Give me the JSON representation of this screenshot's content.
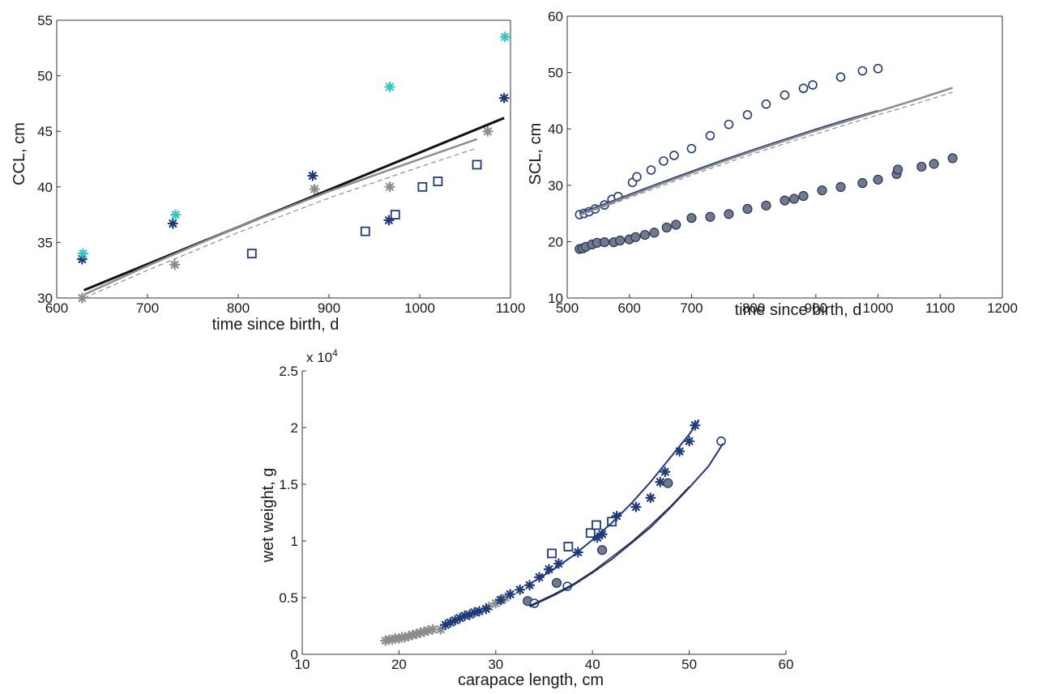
{
  "chart_data": [
    {
      "type": "scatter",
      "id": "ccl",
      "title": "",
      "xlabel": "time since birth, d",
      "ylabel": "CCL, cm",
      "xlim": [
        600,
        1100
      ],
      "ylim": [
        30,
        55
      ],
      "xticks": [
        "600",
        "700",
        "800",
        "900",
        "1000",
        "1100"
      ],
      "yticks": [
        "30",
        "35",
        "40",
        "45",
        "50",
        "55"
      ],
      "grid": false,
      "colors": {
        "navy": "#1f3a7a",
        "gray": "#8c8c8c",
        "cyan": "#33c4c4",
        "black": "#111111"
      },
      "series": [
        {
          "kind": "marker",
          "marker": "asterisk",
          "color": "navy",
          "x": [
            628,
            728,
            882,
            966,
            1093
          ],
          "y": [
            33.5,
            36.7,
            41.0,
            37.0,
            48.0
          ]
        },
        {
          "kind": "marker",
          "marker": "asterisk",
          "color": "gray",
          "x": [
            628,
            730,
            884,
            967,
            1075
          ],
          "y": [
            30.0,
            33.0,
            39.8,
            40.0,
            45.0
          ]
        },
        {
          "kind": "marker",
          "marker": "asterisk",
          "color": "cyan",
          "x": [
            629,
            731,
            967,
            1094
          ],
          "y": [
            34.0,
            37.5,
            49.0,
            53.5
          ]
        },
        {
          "kind": "marker",
          "marker": "square",
          "color": "navy",
          "x": [
            815,
            940,
            973,
            1003,
            1020,
            1063
          ],
          "y": [
            34.0,
            36.0,
            37.5,
            40.0,
            40.5,
            42.0
          ]
        },
        {
          "kind": "line",
          "color": "black",
          "width": 3,
          "dash": "",
          "x": [
            630,
            1093
          ],
          "y": [
            30.7,
            46.2
          ]
        },
        {
          "kind": "line",
          "color": "gray",
          "width": 2.5,
          "dash": "",
          "x": [
            630,
            700,
            800,
            900,
            1000,
            1063
          ],
          "y": [
            30.3,
            32.9,
            36.4,
            39.6,
            42.5,
            44.3
          ]
        },
        {
          "kind": "line",
          "color": "gray",
          "width": 1.2,
          "dash": "6,4",
          "x": [
            630,
            700,
            800,
            900,
            1000,
            1063
          ],
          "y": [
            30.0,
            32.5,
            35.9,
            39.0,
            41.8,
            43.5
          ]
        }
      ]
    },
    {
      "type": "scatter",
      "id": "scl",
      "title": "",
      "xlabel": "time since birth, d",
      "ylabel": "SCL, cm",
      "xlim": [
        500,
        1200
      ],
      "ylim": [
        10,
        60
      ],
      "xticks": [
        "500",
        "600",
        "700",
        "800",
        "900",
        "1000",
        "1100",
        "1200"
      ],
      "yticks": [
        "10",
        "20",
        "30",
        "40",
        "50",
        "60"
      ],
      "grid": false,
      "colors": {
        "navy": "#1f3a7a",
        "gray": "#8c8c8c",
        "fill": "#6f7a91"
      },
      "series": [
        {
          "kind": "marker",
          "marker": "open-circle",
          "color": "navy",
          "x": [
            520,
            527,
            535,
            545,
            560,
            572,
            582,
            605,
            612,
            635,
            655,
            672,
            700,
            730,
            760,
            790,
            820,
            850,
            880,
            895,
            940,
            975,
            1000
          ],
          "y": [
            24.8,
            25.0,
            25.3,
            25.8,
            26.5,
            27.5,
            28.0,
            30.5,
            31.5,
            32.7,
            34.3,
            35.3,
            36.5,
            38.8,
            40.8,
            42.5,
            44.4,
            46.0,
            47.2,
            47.8,
            49.2,
            50.3,
            50.7
          ]
        },
        {
          "kind": "marker",
          "marker": "filled-circle",
          "color": "navy",
          "x": [
            520,
            525,
            530,
            540,
            548,
            560,
            575,
            585,
            600,
            610,
            625,
            640,
            660,
            675,
            700,
            730,
            760,
            790,
            820,
            850,
            865,
            880,
            910,
            940,
            975,
            1000,
            1030,
            1032,
            1070,
            1090,
            1120
          ],
          "y": [
            18.7,
            18.8,
            19.1,
            19.5,
            19.8,
            19.9,
            19.9,
            20.2,
            20.4,
            20.8,
            21.2,
            21.6,
            22.5,
            23.0,
            24.2,
            24.4,
            24.9,
            25.8,
            26.4,
            27.3,
            27.6,
            28.1,
            29.1,
            29.7,
            30.4,
            31.0,
            32.0,
            32.8,
            33.3,
            33.8,
            34.8
          ]
        },
        {
          "kind": "line",
          "color": "navy",
          "width": 2.5,
          "dash": "",
          "x": [
            520,
            550,
            600,
            650,
            700,
            750,
            800,
            850,
            900,
            950,
            1000
          ],
          "y": [
            25.0,
            26.2,
            28.3,
            30.4,
            32.4,
            34.4,
            36.3,
            38.1,
            39.9,
            41.6,
            43.2
          ]
        },
        {
          "kind": "line",
          "color": "gray",
          "width": 2.5,
          "dash": "",
          "x": [
            520,
            550,
            600,
            650,
            700,
            750,
            800,
            850,
            900,
            950,
            1000,
            1050,
            1120
          ],
          "y": [
            24.8,
            26.0,
            28.1,
            30.2,
            32.2,
            34.2,
            36.1,
            37.9,
            39.7,
            41.4,
            43.1,
            44.8,
            47.3
          ]
        },
        {
          "kind": "line",
          "color": "gray",
          "width": 1.2,
          "dash": "6,4",
          "x": [
            520,
            550,
            600,
            650,
            700,
            750,
            800,
            850,
            900,
            950,
            1000,
            1050,
            1120
          ],
          "y": [
            24.6,
            25.8,
            27.8,
            29.8,
            31.8,
            33.7,
            35.6,
            37.4,
            39.1,
            40.8,
            42.5,
            44.1,
            46.5
          ]
        }
      ]
    },
    {
      "type": "scatter",
      "id": "ww",
      "title": "",
      "xlabel": "carapace length, cm",
      "ylabel": "wet weight, g",
      "exponent_label": "x 10",
      "exponent_power": "4",
      "xlim": [
        10,
        60
      ],
      "ylim": [
        0,
        2.5
      ],
      "xticks": [
        "10",
        "20",
        "30",
        "40",
        "50",
        "60"
      ],
      "yticks": [
        "0",
        "0.5",
        "1",
        "1.5",
        "2",
        "2.5"
      ],
      "grid": false,
      "colors": {
        "navy": "#1f3a7a",
        "gray": "#8c8c8c",
        "fill": "#6f7a91",
        "black": "#222222"
      },
      "series": [
        {
          "kind": "marker",
          "marker": "asterisk",
          "color": "gray",
          "x": [
            18.6,
            19.0,
            19.3,
            19.6,
            20.0,
            20.3,
            20.6,
            21.0,
            21.4,
            21.8,
            22.2,
            22.6,
            23.0,
            23.5,
            24.3,
            29.3,
            30.0,
            30.6,
            31.0
          ],
          "y": [
            0.12,
            0.13,
            0.13,
            0.14,
            0.14,
            0.15,
            0.15,
            0.16,
            0.17,
            0.18,
            0.19,
            0.2,
            0.21,
            0.22,
            0.22,
            0.42,
            0.45,
            0.48,
            0.5
          ]
        },
        {
          "kind": "marker",
          "marker": "asterisk",
          "color": "navy",
          "x": [
            24.8,
            25.3,
            25.8,
            26.3,
            26.8,
            27.3,
            27.8,
            28.3,
            29.0,
            30.5,
            31.5,
            32.5,
            33.5,
            34.5,
            35.5,
            36.5,
            38.5,
            40.5,
            41.0,
            42.5,
            44.5,
            46.0,
            47.0,
            47.5,
            49.0,
            50.0,
            50.6
          ],
          "y": [
            0.26,
            0.28,
            0.3,
            0.32,
            0.34,
            0.35,
            0.37,
            0.38,
            0.4,
            0.48,
            0.53,
            0.57,
            0.61,
            0.68,
            0.75,
            0.8,
            0.9,
            1.03,
            1.06,
            1.22,
            1.3,
            1.38,
            1.52,
            1.61,
            1.79,
            1.88,
            2.02
          ]
        },
        {
          "kind": "marker",
          "marker": "square",
          "color": "navy",
          "x": [
            35.8,
            37.5,
            39.8,
            40.4,
            42.0
          ],
          "y": [
            0.89,
            0.95,
            1.07,
            1.14,
            1.17
          ]
        },
        {
          "kind": "marker",
          "marker": "filled-circle",
          "color": "navy",
          "x": [
            33.3,
            36.3,
            41.0,
            47.8
          ],
          "y": [
            0.47,
            0.63,
            0.92,
            1.51
          ]
        },
        {
          "kind": "marker",
          "marker": "open-circle",
          "color": "navy",
          "x": [
            34.0,
            37.4,
            53.3
          ],
          "y": [
            0.45,
            0.6,
            1.88
          ]
        },
        {
          "kind": "line",
          "color": "navy",
          "width": 2,
          "dash": "",
          "x": [
            33.5,
            36,
            38,
            40,
            42,
            44,
            46,
            48,
            50,
            51.0
          ],
          "y": [
            0.62,
            0.75,
            0.87,
            1.01,
            1.16,
            1.33,
            1.52,
            1.73,
            1.94,
            2.07
          ]
        },
        {
          "kind": "line",
          "color": "navy",
          "width": 2,
          "dash": "",
          "x": [
            33.5,
            36,
            38,
            40,
            42,
            44,
            46,
            48,
            50,
            52,
            53.5
          ],
          "y": [
            0.42,
            0.52,
            0.61,
            0.72,
            0.84,
            0.98,
            1.12,
            1.29,
            1.47,
            1.66,
            1.86
          ]
        },
        {
          "kind": "line",
          "color": "black",
          "width": 1.2,
          "dash": "",
          "x": [
            33.5,
            36,
            38,
            40,
            42,
            44,
            46,
            48,
            50
          ],
          "y": [
            0.43,
            0.53,
            0.62,
            0.73,
            0.86,
            0.99,
            1.14,
            1.3,
            1.48
          ]
        }
      ]
    }
  ]
}
